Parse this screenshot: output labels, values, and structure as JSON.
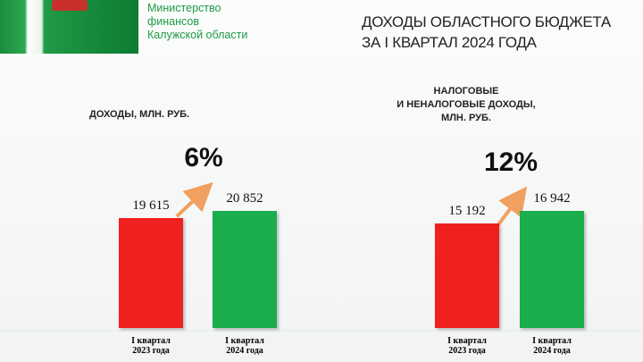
{
  "header": {
    "ministry": "Министерство\nфинансов\nКалужской области",
    "title": "ДОХОДЫ ОБЛАСТНОГО БЮДЖЕТА\nЗА I КВАРТАЛ 2024 ГОДА"
  },
  "chart_data": [
    {
      "type": "bar",
      "title": "ДОХОДЫ,  МЛН. РУБ.",
      "annotation": "6%",
      "categories": [
        "I квартал\n2023 года",
        "I квартал\n2024 года"
      ],
      "values": [
        19615,
        20852
      ],
      "value_labels": [
        "19 615",
        "20 852"
      ],
      "colors": [
        "#f0201f",
        "#19ad4c"
      ]
    },
    {
      "type": "bar",
      "title": "НАЛОГОВЫЕ\nИ НЕНАЛОГОВЫЕ  ДОХОДЫ,\nМЛН. РУБ.",
      "annotation": "12%",
      "categories": [
        "I квартал\n2023 года",
        "I квартал\n2024 года"
      ],
      "values": [
        15192,
        16942
      ],
      "value_labels": [
        "15 192",
        "16 942"
      ],
      "colors": [
        "#f0201f",
        "#19ad4c"
      ]
    }
  ]
}
